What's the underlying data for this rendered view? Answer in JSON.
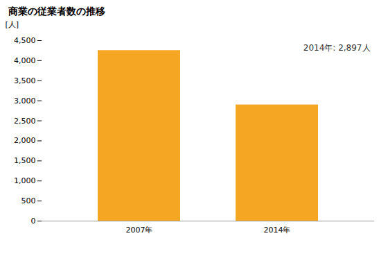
{
  "chart_data": {
    "type": "bar",
    "title": "商業の従業者数の推移",
    "ylabel": "[人]",
    "categories": [
      "2007年",
      "2014年"
    ],
    "values": [
      4253,
      2897
    ],
    "color": "#F5A623",
    "ylim": [
      0,
      4500
    ],
    "yticks": [
      0,
      500,
      {
        "value": 1000,
        "label": "1,000"
      },
      {
        "value": 1500,
        "label": "1,500"
      },
      {
        "value": 2000,
        "label": "2,000"
      },
      {
        "value": 2500,
        "label": "2,500"
      },
      {
        "value": 3000,
        "label": "3,000"
      },
      {
        "value": 3500,
        "label": "3,500"
      },
      {
        "value": 4000,
        "label": "4,000"
      },
      {
        "value": 4500,
        "label": "4,500"
      }
    ],
    "annotation": "2014年: 2,897人",
    "grid": false
  }
}
